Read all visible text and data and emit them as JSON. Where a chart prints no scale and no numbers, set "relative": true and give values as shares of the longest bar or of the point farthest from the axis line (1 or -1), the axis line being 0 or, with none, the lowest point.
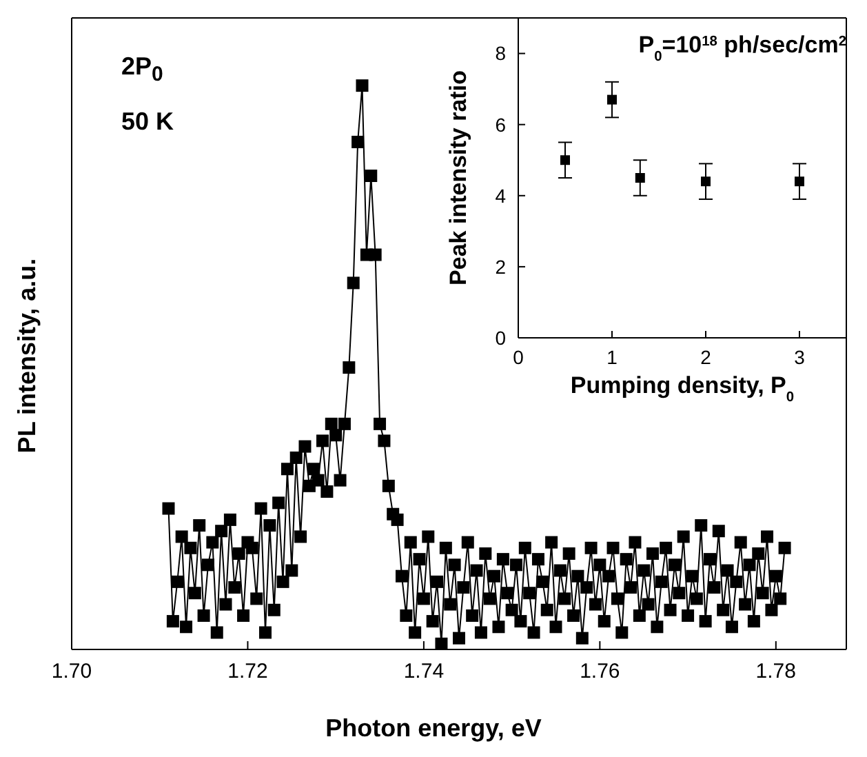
{
  "chart_data": [
    {
      "type": "line",
      "xlabel": "Photon energy, eV",
      "ylabel": "PL intensity, a.u.",
      "annotations": [
        "2P$_{0}$",
        "50 K"
      ],
      "relative": true,
      "marker": "square",
      "color": "#000000",
      "xlim": [
        1.7,
        1.788
      ],
      "xticks": [
        {
          "value": 1.7,
          "label": "1.70"
        },
        {
          "value": 1.72,
          "label": "1.72"
        },
        {
          "value": 1.74,
          "label": "1.74"
        },
        {
          "value": 1.76,
          "label": "1.76"
        },
        {
          "value": 1.78,
          "label": "1.78"
        }
      ],
      "x": [
        1.711,
        1.7115,
        1.712,
        1.7125,
        1.713,
        1.7135,
        1.714,
        1.7145,
        1.715,
        1.7155,
        1.716,
        1.7165,
        1.717,
        1.7175,
        1.718,
        1.7185,
        1.719,
        1.7195,
        1.72,
        1.7205,
        1.721,
        1.7215,
        1.722,
        1.7225,
        1.723,
        1.7235,
        1.724,
        1.7245,
        1.725,
        1.7255,
        1.726,
        1.7265,
        1.727,
        1.7275,
        1.728,
        1.7285,
        1.729,
        1.7295,
        1.73,
        1.7305,
        1.731,
        1.7315,
        1.732,
        1.7325,
        1.733,
        1.7335,
        1.734,
        1.7345,
        1.735,
        1.7355,
        1.736,
        1.7365,
        1.737,
        1.7375,
        1.738,
        1.7385,
        1.739,
        1.7395,
        1.74,
        1.7405,
        1.741,
        1.7415,
        1.742,
        1.7425,
        1.743,
        1.7435,
        1.744,
        1.7445,
        1.745,
        1.7455,
        1.746,
        1.7465,
        1.747,
        1.7475,
        1.748,
        1.7485,
        1.749,
        1.7495,
        1.75,
        1.7505,
        1.751,
        1.7515,
        1.752,
        1.7525,
        1.753,
        1.7535,
        1.754,
        1.7545,
        1.755,
        1.7555,
        1.756,
        1.7565,
        1.757,
        1.7575,
        1.758,
        1.7585,
        1.759,
        1.7595,
        1.76,
        1.7605,
        1.761,
        1.7615,
        1.762,
        1.7625,
        1.763,
        1.7635,
        1.764,
        1.7645,
        1.765,
        1.7655,
        1.766,
        1.7665,
        1.767,
        1.7675,
        1.768,
        1.7685,
        1.769,
        1.7695,
        1.77,
        1.7705,
        1.771,
        1.7715,
        1.772,
        1.7725,
        1.773,
        1.7735,
        1.774,
        1.7745,
        1.775,
        1.7755,
        1.776,
        1.7765,
        1.777,
        1.7775,
        1.778,
        1.7785,
        1.779,
        1.7795,
        1.78,
        1.7805,
        1.781
      ],
      "values": [
        0.25,
        0.05,
        0.12,
        0.2,
        0.04,
        0.18,
        0.1,
        0.22,
        0.06,
        0.15,
        0.19,
        0.03,
        0.21,
        0.08,
        0.23,
        0.11,
        0.17,
        0.06,
        0.19,
        0.18,
        0.09,
        0.25,
        0.03,
        0.22,
        0.07,
        0.26,
        0.12,
        0.32,
        0.14,
        0.34,
        0.2,
        0.36,
        0.29,
        0.32,
        0.3,
        0.37,
        0.28,
        0.4,
        0.38,
        0.3,
        0.4,
        0.5,
        0.65,
        0.9,
        1.0,
        0.7,
        0.84,
        0.7,
        0.4,
        0.37,
        0.29,
        0.24,
        0.23,
        0.13,
        0.06,
        0.19,
        0.03,
        0.16,
        0.09,
        0.2,
        0.05,
        0.12,
        0.01,
        0.18,
        0.08,
        0.15,
        0.02,
        0.11,
        0.19,
        0.06,
        0.14,
        0.03,
        0.17,
        0.09,
        0.13,
        0.04,
        0.16,
        0.1,
        0.07,
        0.15,
        0.05,
        0.18,
        0.1,
        0.03,
        0.16,
        0.12,
        0.07,
        0.19,
        0.04,
        0.14,
        0.09,
        0.17,
        0.06,
        0.13,
        0.02,
        0.11,
        0.18,
        0.08,
        0.15,
        0.05,
        0.13,
        0.18,
        0.09,
        0.03,
        0.16,
        0.11,
        0.19,
        0.06,
        0.14,
        0.08,
        0.17,
        0.04,
        0.12,
        0.18,
        0.07,
        0.15,
        0.1,
        0.2,
        0.06,
        0.13,
        0.09,
        0.22,
        0.05,
        0.16,
        0.11,
        0.21,
        0.07,
        0.14,
        0.04,
        0.12,
        0.19,
        0.08,
        0.15,
        0.05,
        0.17,
        0.1,
        0.2,
        0.07,
        0.13,
        0.09,
        0.18
      ]
    },
    {
      "type": "scatter",
      "xlabel": "Pumping density, P$_{0}$",
      "ylabel": "Peak intensity ratio",
      "annotations": [
        "P$_{0}$=10$^{18}$ ph/sec/cm$^{2}$"
      ],
      "marker": "square",
      "color": "#000000",
      "xlim": [
        0,
        3.5
      ],
      "xticks": [
        0,
        1,
        2,
        3
      ],
      "ylim": [
        0,
        9
      ],
      "yticks": [
        0,
        2,
        4,
        6,
        8
      ],
      "x": [
        0.5,
        1,
        1.3,
        2,
        3
      ],
      "values": [
        5.0,
        6.7,
        4.5,
        4.4,
        4.4
      ],
      "errors": [
        0.5,
        0.5,
        0.5,
        0.5,
        0.5
      ]
    }
  ]
}
